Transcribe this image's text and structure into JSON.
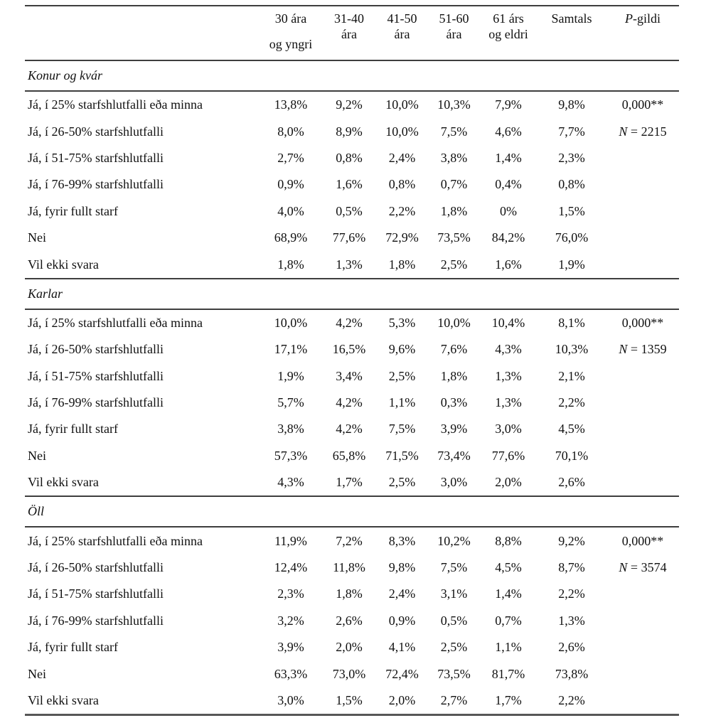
{
  "table": {
    "header": {
      "columns": [
        {
          "line1": "30 ára",
          "line2": "og yngri"
        },
        {
          "line1": "31-40",
          "line2": "ára"
        },
        {
          "line1": "41-50",
          "line2": "ára"
        },
        {
          "line1": "51-60",
          "line2": "ára"
        },
        {
          "line1": "61 árs",
          "line2": "og eldri"
        },
        {
          "line1": "Samtals",
          "line2": ""
        },
        {
          "italic": "P",
          "rest": "-gildi"
        }
      ]
    },
    "sections": [
      {
        "title": "Konur og kvár",
        "rows": [
          {
            "label": "Já, í 25% starfshlutfalli eða minna",
            "values": [
              "13,8%",
              "9,2%",
              "10,0%",
              "10,3%",
              "7,9%",
              "9,8%"
            ],
            "note": {
              "italic": "",
              "text": "0,000**"
            }
          },
          {
            "label": "Já, í 26-50% starfshlutfalli",
            "values": [
              "8,0%",
              "8,9%",
              "10,0%",
              "7,5%",
              "4,6%",
              "7,7%"
            ],
            "note": {
              "italic": "N",
              "text": " = 2215"
            }
          },
          {
            "label": "Já, í 51-75% starfshlutfalli",
            "values": [
              "2,7%",
              "0,8%",
              "2,4%",
              "3,8%",
              "1,4%",
              "2,3%"
            ]
          },
          {
            "label": "Já, í 76-99% starfshlutfalli",
            "values": [
              "0,9%",
              "1,6%",
              "0,8%",
              "0,7%",
              "0,4%",
              "0,8%"
            ]
          },
          {
            "label": "Já, fyrir fullt starf",
            "values": [
              "4,0%",
              "0,5%",
              "2,2%",
              "1,8%",
              "0%",
              "1,5%"
            ]
          },
          {
            "label": "Nei",
            "values": [
              "68,9%",
              "77,6%",
              "72,9%",
              "73,5%",
              "84,2%",
              "76,0%"
            ]
          },
          {
            "label": "Vil ekki svara",
            "values": [
              "1,8%",
              "1,3%",
              "1,8%",
              "2,5%",
              "1,6%",
              "1,9%"
            ]
          }
        ]
      },
      {
        "title": "Karlar",
        "rows": [
          {
            "label": "Já, í 25% starfshlutfalli eða minna",
            "values": [
              "10,0%",
              "4,2%",
              "5,3%",
              "10,0%",
              "10,4%",
              "8,1%"
            ],
            "note": {
              "italic": "",
              "text": "0,000**"
            }
          },
          {
            "label": "Já, í 26-50% starfshlutfalli",
            "values": [
              "17,1%",
              "16,5%",
              "9,6%",
              "7,6%",
              "4,3%",
              "10,3%"
            ],
            "note": {
              "italic": "N",
              "text": " = 1359"
            }
          },
          {
            "label": "Já, í 51-75% starfshlutfalli",
            "values": [
              "1,9%",
              "3,4%",
              "2,5%",
              "1,8%",
              "1,3%",
              "2,1%"
            ]
          },
          {
            "label": "Já, í 76-99% starfshlutfalli",
            "values": [
              "5,7%",
              "4,2%",
              "1,1%",
              "0,3%",
              "1,3%",
              "2,2%"
            ]
          },
          {
            "label": "Já, fyrir fullt starf",
            "values": [
              "3,8%",
              "4,2%",
              "7,5%",
              "3,9%",
              "3,0%",
              "4,5%"
            ]
          },
          {
            "label": "Nei",
            "values": [
              "57,3%",
              "65,8%",
              "71,5%",
              "73,4%",
              "77,6%",
              "70,1%"
            ]
          },
          {
            "label": "Vil ekki svara",
            "values": [
              "4,3%",
              "1,7%",
              "2,5%",
              "3,0%",
              "2,0%",
              "2,6%"
            ]
          }
        ]
      },
      {
        "title": "Öll",
        "rows": [
          {
            "label": "Já, í 25% starfshlutfalli eða minna",
            "values": [
              "11,9%",
              "7,2%",
              "8,3%",
              "10,2%",
              "8,8%",
              "9,2%"
            ],
            "note": {
              "italic": "",
              "text": "0,000**"
            }
          },
          {
            "label": "Já, í 26-50% starfshlutfalli",
            "values": [
              "12,4%",
              "11,8%",
              "9,8%",
              "7,5%",
              "4,5%",
              "8,7%"
            ],
            "note": {
              "italic": "N",
              "text": " = 3574"
            }
          },
          {
            "label": "Já, í 51-75% starfshlutfalli",
            "values": [
              "2,3%",
              "1,8%",
              "2,4%",
              "3,1%",
              "1,4%",
              "2,2%"
            ]
          },
          {
            "label": "Já, í 76-99% starfshlutfalli",
            "values": [
              "3,2%",
              "2,6%",
              "0,9%",
              "0,5%",
              "0,7%",
              "1,3%"
            ]
          },
          {
            "label": "Já, fyrir fullt starf",
            "values": [
              "3,9%",
              "2,0%",
              "4,1%",
              "2,5%",
              "1,1%",
              "2,6%"
            ]
          },
          {
            "label": "Nei",
            "values": [
              "63,3%",
              "73,0%",
              "72,4%",
              "73,5%",
              "81,7%",
              "73,8%"
            ]
          },
          {
            "label": "Vil ekki svara",
            "values": [
              "3,0%",
              "1,5%",
              "2,0%",
              "2,7%",
              "1,7%",
              "2,2%"
            ]
          }
        ]
      }
    ]
  }
}
